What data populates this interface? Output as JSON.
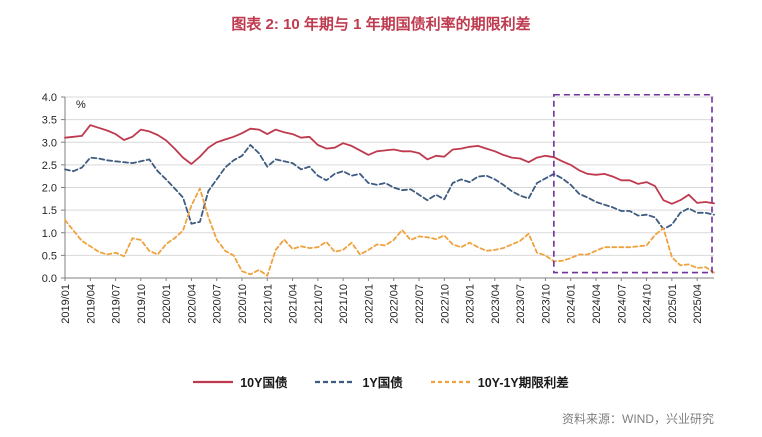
{
  "title": "图表 2: 10 年期与 1 年期国债利率的期限利差",
  "source": "资料来源：WIND，兴业研究",
  "colors": {
    "red": "#bf3a4e",
    "blue": "#3e5c80",
    "orange": "#f0a23e",
    "highlight_purple": "#7030a0",
    "grid": "#d9d9d9",
    "axis": "#808080",
    "tick_text": "#262626"
  },
  "chart_data": {
    "type": "line",
    "title": "图表 2: 10 年期与 1 年期国债利率的期限利差",
    "unit": "%",
    "ylim": [
      0.0,
      4.0
    ],
    "ytick_labels": [
      "0.0",
      "0.5",
      "1.0",
      "1.5",
      "2.0",
      "2.5",
      "3.0",
      "3.5",
      "4.0"
    ],
    "x_tick_every": 3,
    "grid": "horizontal",
    "legend_position": "bottom",
    "categories": [
      "2019/01",
      "2019/02",
      "2019/03",
      "2019/04",
      "2019/05",
      "2019/06",
      "2019/07",
      "2019/08",
      "2019/09",
      "2019/10",
      "2019/11",
      "2019/12",
      "2020/01",
      "2020/02",
      "2020/03",
      "2020/04",
      "2020/05",
      "2020/06",
      "2020/07",
      "2020/08",
      "2020/09",
      "2020/10",
      "2020/11",
      "2020/12",
      "2021/01",
      "2021/02",
      "2021/03",
      "2021/04",
      "2021/05",
      "2021/06",
      "2021/07",
      "2021/08",
      "2021/09",
      "2021/10",
      "2021/11",
      "2021/12",
      "2022/01",
      "2022/02",
      "2022/03",
      "2022/04",
      "2022/05",
      "2022/06",
      "2022/07",
      "2022/08",
      "2022/09",
      "2022/10",
      "2022/11",
      "2022/12",
      "2023/01",
      "2023/02",
      "2023/03",
      "2023/04",
      "2023/05",
      "2023/06",
      "2023/07",
      "2023/08",
      "2023/09",
      "2023/10",
      "2023/11",
      "2023/12",
      "2024/01",
      "2024/02",
      "2024/03",
      "2024/04",
      "2024/05",
      "2024/06",
      "2024/07",
      "2024/08",
      "2024/09",
      "2024/10",
      "2024/11",
      "2024/12",
      "2025/01",
      "2025/02",
      "2025/03",
      "2025/04",
      "2025/05",
      "2025/06"
    ],
    "series": [
      {
        "name": "10Y国债",
        "style": "solid",
        "color_key": "red",
        "values": [
          3.1,
          3.12,
          3.14,
          3.38,
          3.32,
          3.26,
          3.18,
          3.05,
          3.12,
          3.28,
          3.24,
          3.16,
          3.04,
          2.86,
          2.66,
          2.52,
          2.68,
          2.88,
          3.0,
          3.06,
          3.12,
          3.2,
          3.3,
          3.28,
          3.18,
          3.28,
          3.22,
          3.18,
          3.1,
          3.12,
          2.94,
          2.86,
          2.88,
          2.98,
          2.92,
          2.82,
          2.72,
          2.8,
          2.82,
          2.84,
          2.8,
          2.8,
          2.76,
          2.62,
          2.7,
          2.68,
          2.84,
          2.86,
          2.9,
          2.92,
          2.86,
          2.8,
          2.72,
          2.66,
          2.64,
          2.56,
          2.66,
          2.7,
          2.67,
          2.58,
          2.5,
          2.38,
          2.3,
          2.28,
          2.3,
          2.24,
          2.16,
          2.16,
          2.08,
          2.12,
          2.03,
          1.72,
          1.64,
          1.72,
          1.84,
          1.66,
          1.68,
          1.65
        ]
      },
      {
        "name": "1Y国债",
        "style": "dashed",
        "color_key": "blue",
        "values": [
          2.4,
          2.36,
          2.44,
          2.66,
          2.64,
          2.6,
          2.58,
          2.56,
          2.54,
          2.58,
          2.62,
          2.36,
          2.18,
          1.98,
          1.78,
          1.2,
          1.24,
          1.92,
          2.18,
          2.44,
          2.6,
          2.7,
          2.94,
          2.76,
          2.46,
          2.62,
          2.58,
          2.54,
          2.4,
          2.46,
          2.26,
          2.16,
          2.3,
          2.36,
          2.26,
          2.3,
          2.1,
          2.06,
          2.1,
          2.0,
          1.94,
          1.96,
          1.84,
          1.72,
          1.84,
          1.74,
          2.1,
          2.18,
          2.12,
          2.24,
          2.26,
          2.18,
          2.06,
          1.92,
          1.82,
          1.76,
          2.1,
          2.2,
          2.3,
          2.2,
          2.06,
          1.86,
          1.78,
          1.68,
          1.62,
          1.56,
          1.48,
          1.48,
          1.38,
          1.4,
          1.34,
          1.08,
          1.18,
          1.44,
          1.54,
          1.44,
          1.44,
          1.4
        ]
      },
      {
        "name": "10Y-1Y期限利差",
        "style": "dashed",
        "color_key": "orange",
        "values": [
          1.28,
          1.05,
          0.82,
          0.7,
          0.58,
          0.52,
          0.56,
          0.48,
          0.88,
          0.84,
          0.6,
          0.52,
          0.75,
          0.88,
          1.05,
          1.6,
          1.98,
          1.35,
          0.85,
          0.6,
          0.5,
          0.15,
          0.08,
          0.18,
          0.05,
          0.62,
          0.85,
          0.64,
          0.7,
          0.66,
          0.68,
          0.8,
          0.58,
          0.62,
          0.78,
          0.52,
          0.62,
          0.74,
          0.72,
          0.84,
          1.06,
          0.84,
          0.92,
          0.9,
          0.86,
          0.94,
          0.74,
          0.68,
          0.78,
          0.68,
          0.6,
          0.62,
          0.66,
          0.74,
          0.82,
          0.98,
          0.56,
          0.5,
          0.37,
          0.38,
          0.44,
          0.52,
          0.52,
          0.6,
          0.68,
          0.68,
          0.68,
          0.68,
          0.7,
          0.72,
          0.95,
          1.1,
          0.46,
          0.28,
          0.3,
          0.22,
          0.24,
          0.12
        ]
      }
    ],
    "highlight_box": {
      "start_category": "2023/11",
      "y_from": 0.12,
      "y_to": 4.05,
      "note": "dashed purple box over 2024-2025 period"
    }
  }
}
